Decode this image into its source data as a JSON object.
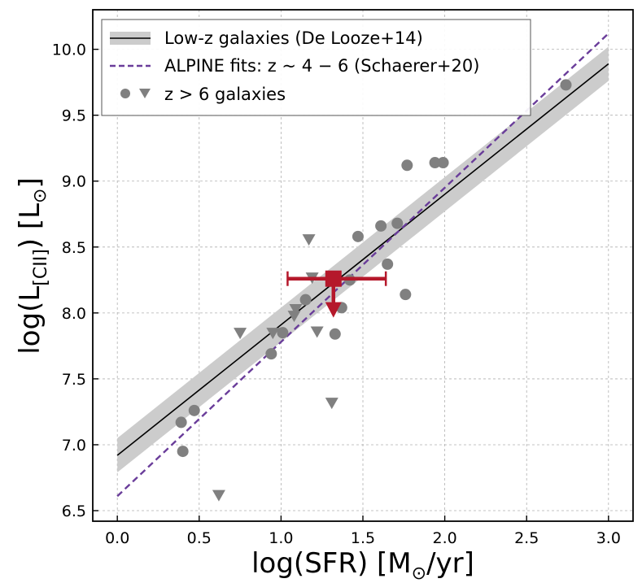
{
  "chart_data": {
    "type": "scatter",
    "xlabel": "log(SFR) [M⊙/yr]",
    "ylabel": "log(L[CII]) [L⊙]",
    "xlim": [
      -0.15,
      3.15
    ],
    "ylim": [
      6.42,
      10.3
    ],
    "xticks": [
      0.0,
      0.5,
      1.0,
      1.5,
      2.0,
      2.5,
      3.0
    ],
    "xtick_labels": [
      "0.0",
      "0.5",
      "1.0",
      "1.5",
      "2.0",
      "2.5",
      "3.0"
    ],
    "yticks": [
      6.5,
      7.0,
      7.5,
      8.0,
      8.5,
      9.0,
      9.5,
      10.0
    ],
    "ytick_labels": [
      "6.5",
      "7.0",
      "7.5",
      "8.0",
      "8.5",
      "9.0",
      "9.5",
      "10.0"
    ],
    "grid": true,
    "legend_position": "top-left",
    "legend": [
      {
        "label": "Low-z galaxies (De Looze+14)",
        "kind": "line-band"
      },
      {
        "label": "ALPINE fits: z ~ 4 − 6 (Schaerer+20)",
        "kind": "dashed-line"
      },
      {
        "label": "z > 6 galaxies",
        "kind": "markers"
      }
    ],
    "colors": {
      "lowz_line": "#000000",
      "lowz_band": "#cccccc",
      "alpine": "#6a3d9a",
      "z6_markers": "#808080",
      "highlight": "#b5182b"
    },
    "series": [
      {
        "name": "Low-z galaxies (De Looze+14)",
        "type": "line",
        "x": [
          0.0,
          3.0
        ],
        "y": [
          6.92,
          9.89
        ],
        "band_halfwidth": 0.13
      },
      {
        "name": "ALPINE fits: z ~ 4 − 6 (Schaerer+20)",
        "type": "dashed-line",
        "x": [
          0.0,
          3.0
        ],
        "y": [
          6.61,
          10.12
        ]
      },
      {
        "name": "z > 6 galaxies",
        "type": "scatter-circles",
        "points": [
          [
            0.39,
            7.17
          ],
          [
            0.4,
            6.95
          ],
          [
            0.47,
            7.26
          ],
          [
            0.94,
            7.69
          ],
          [
            1.01,
            7.85
          ],
          [
            1.15,
            8.1
          ],
          [
            1.33,
            7.84
          ],
          [
            1.37,
            8.04
          ],
          [
            1.42,
            8.25
          ],
          [
            1.47,
            8.58
          ],
          [
            1.61,
            8.66
          ],
          [
            1.65,
            8.37
          ],
          [
            1.71,
            8.68
          ],
          [
            1.76,
            8.14
          ],
          [
            1.77,
            9.12
          ],
          [
            1.94,
            9.14
          ],
          [
            1.99,
            9.14
          ],
          [
            2.74,
            9.73
          ]
        ]
      },
      {
        "name": "z > 6 galaxies (upper limits)",
        "type": "scatter-triangles",
        "points": [
          [
            0.62,
            6.62
          ],
          [
            0.75,
            7.85
          ],
          [
            0.95,
            7.85
          ],
          [
            1.08,
            7.98
          ],
          [
            1.09,
            8.03
          ],
          [
            1.17,
            8.56
          ],
          [
            1.19,
            8.27
          ],
          [
            1.22,
            7.86
          ],
          [
            1.31,
            7.32
          ]
        ]
      },
      {
        "type": "highlighted-point",
        "x": 1.32,
        "y": 8.26,
        "x_err": [
          1.04,
          1.64
        ],
        "upper_limit_to": 8.02
      }
    ]
  }
}
